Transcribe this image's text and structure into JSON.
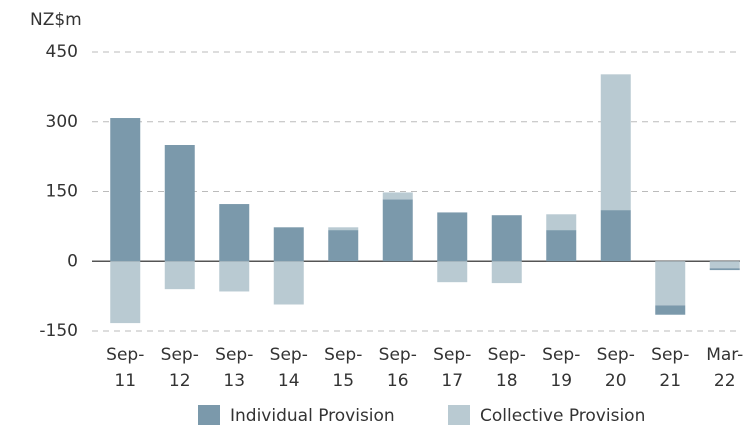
{
  "chart_data": {
    "type": "bar",
    "stacked": true,
    "y_label": "NZ$m",
    "categories": [
      "Sep-11",
      "Sep-12",
      "Sep-13",
      "Sep-14",
      "Sep-15",
      "Sep-16",
      "Sep-17",
      "Sep-18",
      "Sep-19",
      "Sep-20",
      "Sep-21",
      "Mar-22"
    ],
    "series": [
      {
        "name": "Individual Provision",
        "color": "#7b99ab",
        "values": [
          308,
          250,
          123,
          73,
          67,
          133,
          105,
          99,
          67,
          110,
          -20,
          -4
        ]
      },
      {
        "name": "Collective Provision",
        "color": "#b9cad2",
        "values": [
          -133,
          -60,
          -65,
          -93,
          6,
          15,
          -45,
          -47,
          34,
          292,
          -95,
          -15
        ]
      }
    ],
    "ylim": [
      -150,
      450
    ],
    "yticks": [
      -150,
      0,
      150,
      300,
      450
    ],
    "grid": true,
    "legend": "bottom"
  }
}
